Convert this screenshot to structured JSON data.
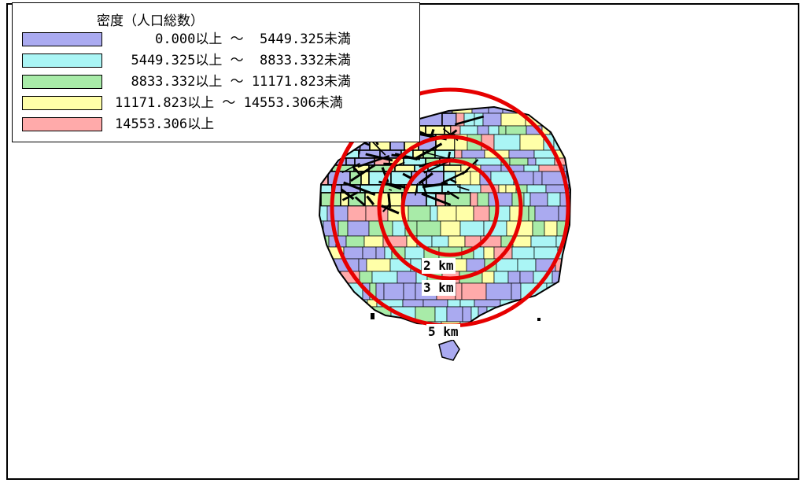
{
  "legend": {
    "title": "密度（人口総数）",
    "items": [
      {
        "label": "     0.000以上 ～  5449.325未満",
        "color": "#aaaaf0"
      },
      {
        "label": "  5449.325以上 ～  8833.332未満",
        "color": "#aaf5f5"
      },
      {
        "label": "  8833.332以上 ～ 11171.823未満",
        "color": "#a8eba8"
      },
      {
        "label": "11171.823以上 ～ 14553.306未満",
        "color": "#ffffa8"
      },
      {
        "label": "14553.306以上",
        "color": "#ffaaaa"
      }
    ]
  },
  "rings": [
    {
      "label": "2 km",
      "radius_km": 2
    },
    {
      "label": "3 km",
      "radius_km": 3
    },
    {
      "label": "5 km",
      "radius_km": 5
    }
  ],
  "colors": {
    "ring": "#e60000",
    "boundary": "#000000",
    "frame": "#000000"
  }
}
